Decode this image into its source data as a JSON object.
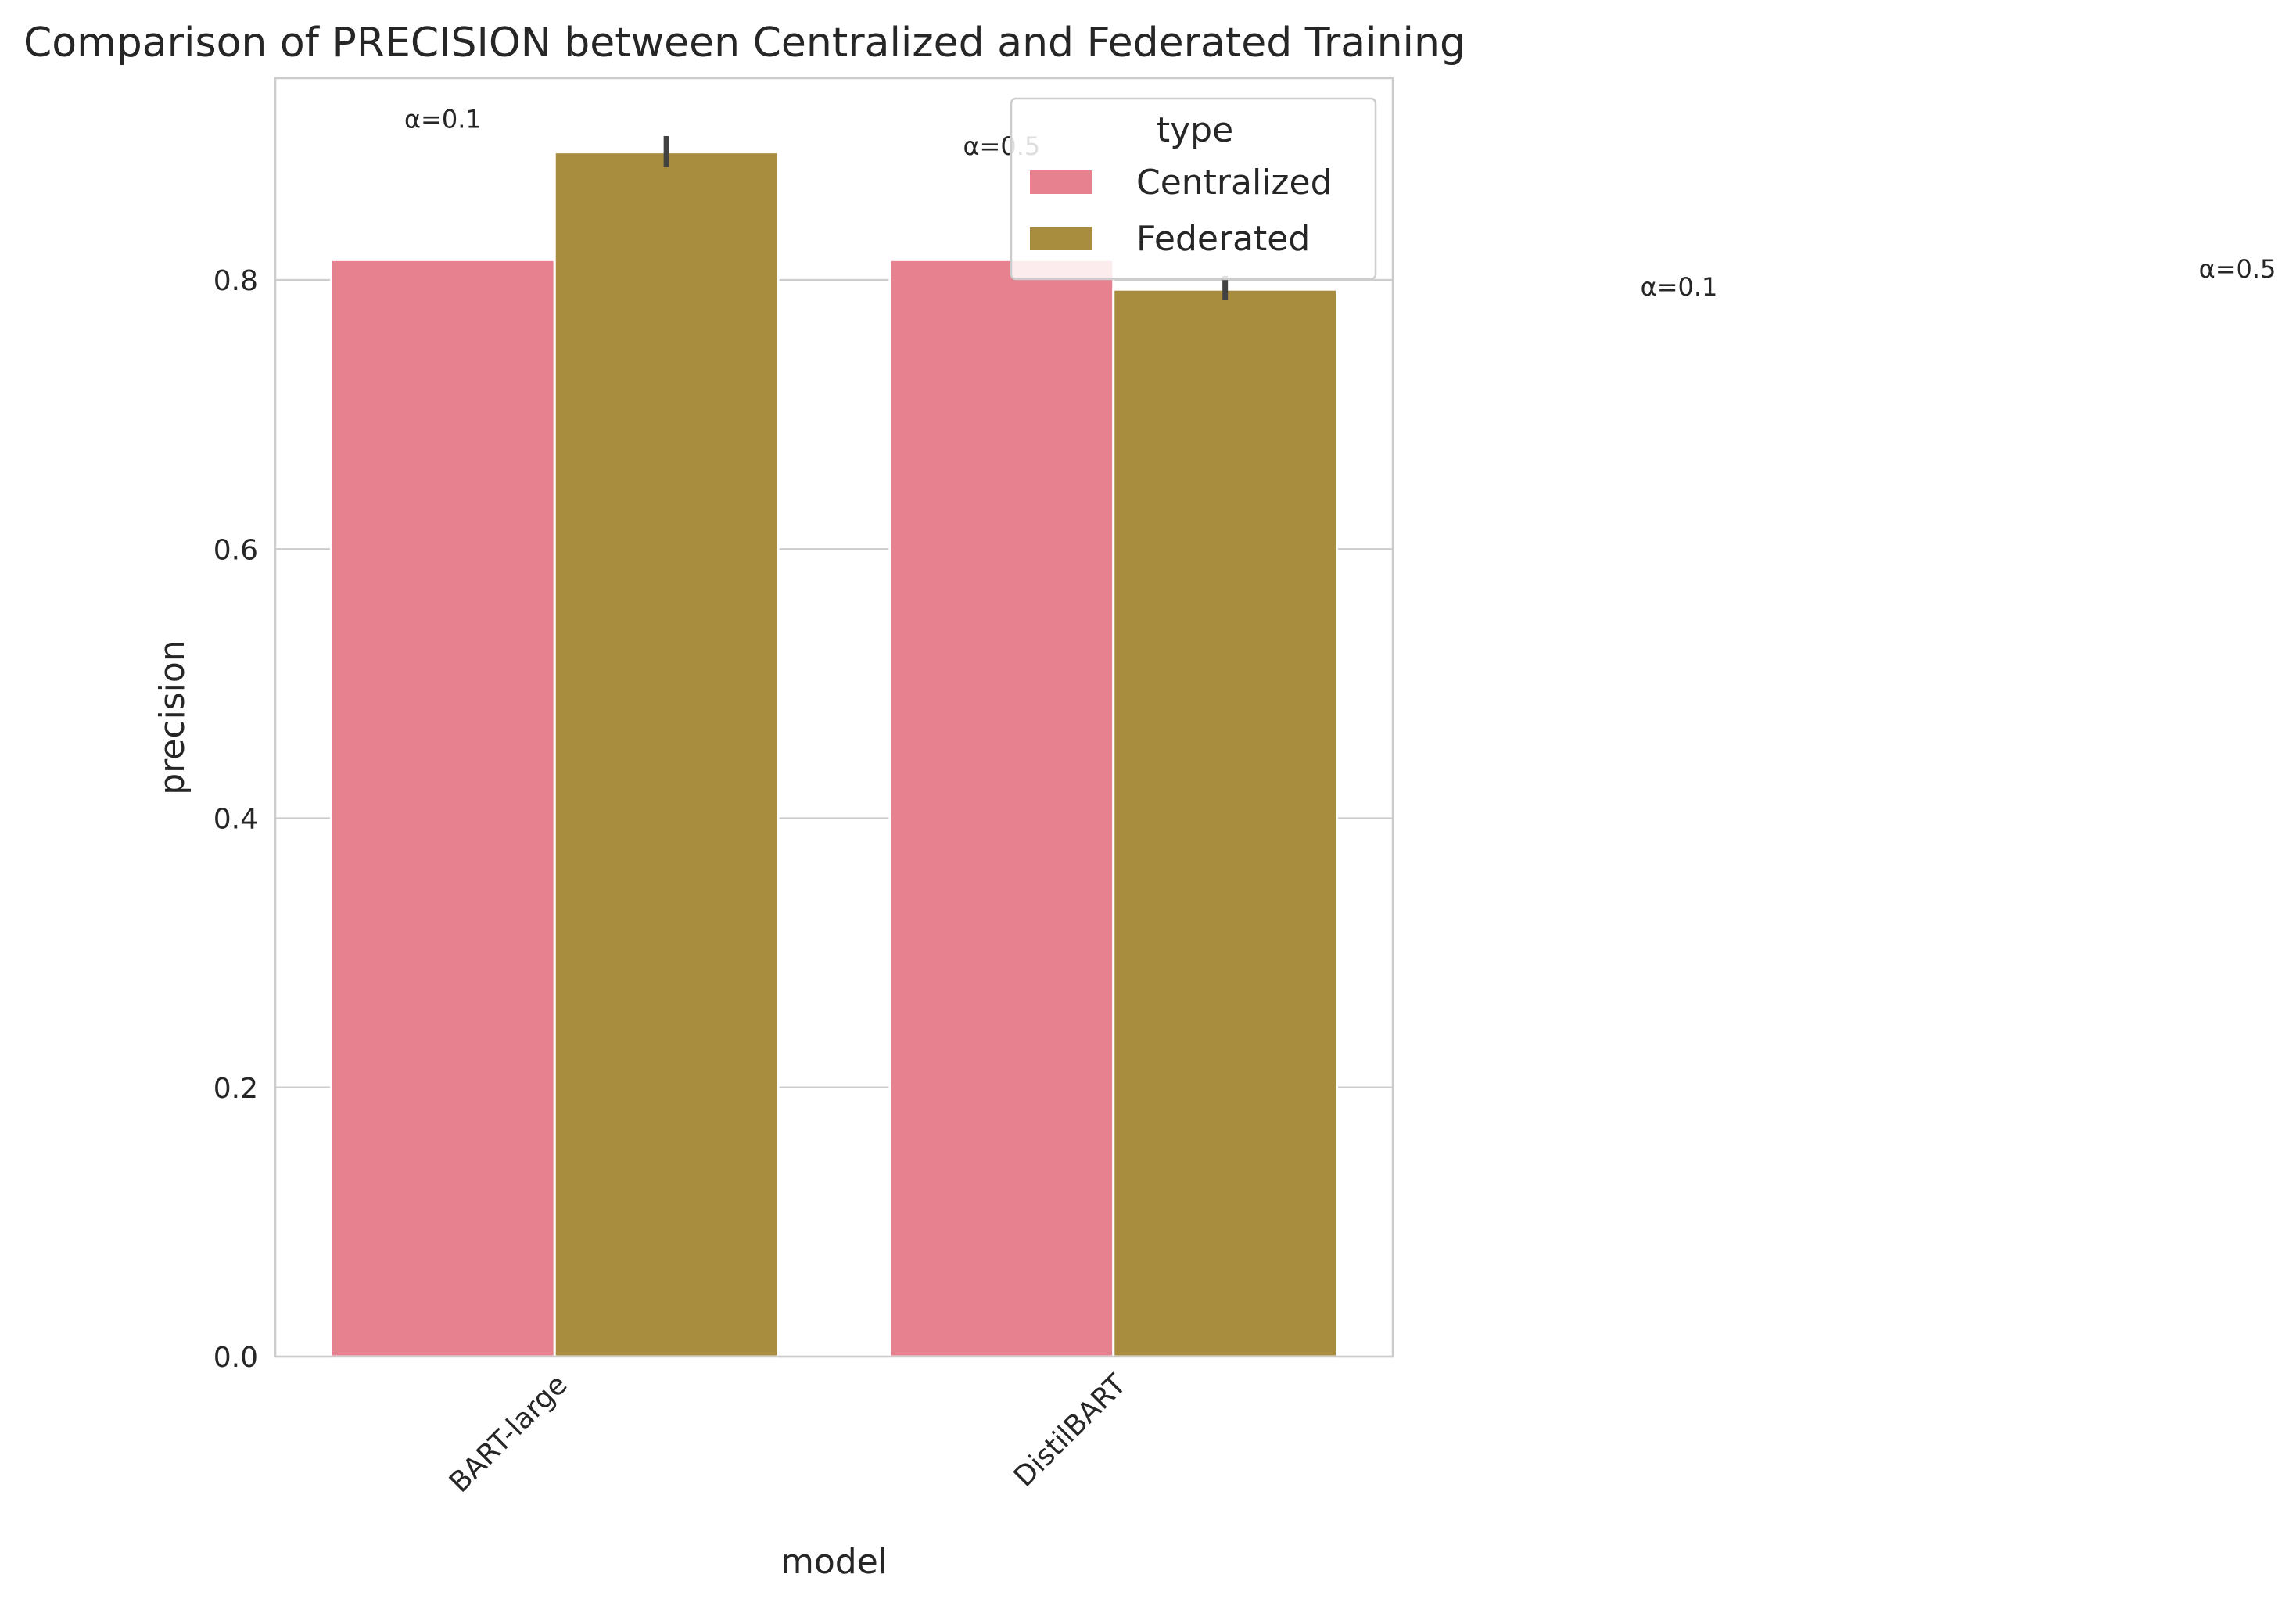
{
  "chart_data": {
    "type": "bar",
    "title": "Comparison of PRECISION between Centralized and Federated Training",
    "xlabel": "model",
    "ylabel": "precision",
    "categories": [
      "BART-large",
      "DistilBART"
    ],
    "series": [
      {
        "name": "Centralized",
        "color": "#e7808f",
        "values": [
          0.815,
          0.815
        ]
      },
      {
        "name": "Federated",
        "color": "#a98d3f",
        "values": [
          0.895,
          0.793
        ],
        "error_low": [
          0.884,
          0.785
        ],
        "error_high": [
          0.907,
          0.803
        ]
      }
    ],
    "ylim": [
      0,
      0.95
    ],
    "yticks": [
      "0.0",
      "0.2",
      "0.4",
      "0.6",
      "0.8"
    ],
    "ytick_values": [
      0,
      0.2,
      0.4,
      0.6,
      0.8
    ],
    "grid": "horizontal",
    "legend": {
      "title": "type",
      "placement": "top-right"
    },
    "annotations": [
      {
        "text": "α=0.1",
        "x": "BART-large",
        "y": 0.913,
        "inside_axes": true
      },
      {
        "text": "α=0.5",
        "x": "DistilBART",
        "y": 0.893,
        "inside_axes": true
      },
      {
        "text": "α=0.1",
        "outside": 1
      },
      {
        "text": "α=0.5",
        "outside": 2
      }
    ]
  }
}
